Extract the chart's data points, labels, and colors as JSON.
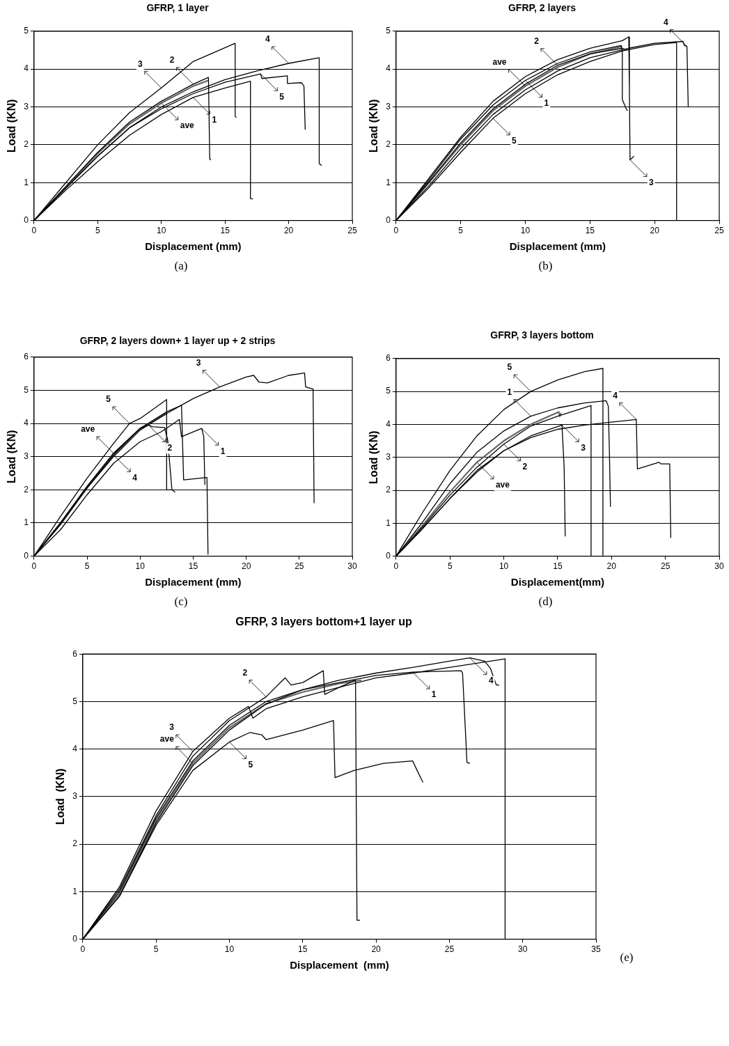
{
  "chart_data": [
    {
      "type": "line",
      "title": "GFRP, 1 layer",
      "xlabel": "Displacement (mm)",
      "ylabel": "Load (KN)",
      "xlim": [
        0,
        25
      ],
      "xticks": [
        0,
        5,
        10,
        15,
        20,
        25
      ],
      "ylim": [
        0,
        5
      ],
      "yticks": [
        0,
        1,
        2,
        3,
        4,
        5
      ],
      "grid": "y",
      "legend": false,
      "series": [
        {
          "color": "#000000",
          "x": [
            0,
            2.5,
            5,
            7.5,
            10,
            12.5,
            15,
            17,
            17,
            17.2
          ],
          "values": [
            0,
            0.8,
            1.55,
            2.25,
            2.8,
            3.25,
            3.5,
            3.68,
            0.58,
            0.57
          ]
        },
        {
          "color": "#000000",
          "x": [
            0,
            2.5,
            5,
            7.5,
            10,
            12.5,
            13.7,
            13.8,
            13.9
          ],
          "values": [
            0,
            0.9,
            1.8,
            2.6,
            3.15,
            3.6,
            3.78,
            1.62,
            1.6
          ]
        },
        {
          "color": "#000000",
          "x": [
            0,
            2.5,
            5,
            7.5,
            10,
            12.5,
            15.8,
            15.8,
            15.9
          ],
          "values": [
            0,
            1.0,
            2.0,
            2.85,
            3.5,
            4.2,
            4.68,
            2.75,
            2.72
          ]
        },
        {
          "color": "#000000",
          "x": [
            0,
            2.5,
            5,
            7.5,
            10,
            12.5,
            15,
            17.5,
            20,
            22.4,
            22.4,
            22.6
          ],
          "values": [
            0,
            0.85,
            1.7,
            2.45,
            3.0,
            3.4,
            3.72,
            3.95,
            4.15,
            4.3,
            1.5,
            1.45
          ]
        },
        {
          "color": "#000000",
          "x": [
            0,
            2.5,
            5,
            7.5,
            10,
            12.5,
            15,
            17.8,
            17.9,
            19.9,
            19.9,
            21,
            21.2,
            21.3
          ],
          "values": [
            0,
            0.85,
            1.7,
            2.45,
            2.95,
            3.35,
            3.65,
            3.87,
            3.75,
            3.82,
            3.62,
            3.64,
            3.55,
            2.4
          ]
        },
        {
          "color": "#666666",
          "x": [
            0,
            2.5,
            5,
            7.5,
            10,
            12.5,
            13.7
          ],
          "values": [
            0,
            0.88,
            1.77,
            2.55,
            3.1,
            3.55,
            3.7
          ]
        }
      ],
      "annotations": [
        {
          "text": "3",
          "x": 10,
          "y": 3.5
        },
        {
          "text": "1",
          "x": 12.5,
          "y": 3.25
        },
        {
          "text": "2",
          "x": 12.5,
          "y": 3.6
        },
        {
          "text": "5",
          "x": 17.8,
          "y": 3.87
        },
        {
          "text": "4",
          "x": 20,
          "y": 4.15
        },
        {
          "text": "ave",
          "x": 10,
          "y": 3.1
        },
        "(a)"
      ]
    },
    {
      "type": "line",
      "title": "GFRP, 2 layers",
      "xlabel": "Displacement (mm)",
      "ylabel": "Load (KN)",
      "xlim": [
        0,
        25
      ],
      "xticks": [
        0,
        5,
        10,
        15,
        20,
        25
      ],
      "ylim": [
        0,
        5
      ],
      "yticks": [
        0,
        1,
        2,
        3,
        4,
        5
      ],
      "grid": "y",
      "legend": false,
      "series": [
        {
          "color": "#000000",
          "x": [
            0,
            2.5,
            5,
            7.5,
            10,
            12.5,
            15,
            17.4,
            17.5,
            17.5,
            17.8,
            17.9
          ],
          "values": [
            0,
            1.05,
            2.15,
            3.05,
            3.7,
            4.15,
            4.45,
            4.62,
            4.45,
            3.2,
            2.95,
            2.9
          ]
        },
        {
          "color": "#000000",
          "x": [
            0,
            2.5,
            5,
            7.5,
            10,
            12.5,
            15,
            17.5,
            17.9
          ],
          "values": [
            0,
            1.0,
            2.05,
            2.95,
            3.6,
            4.1,
            4.4,
            4.55,
            4.5
          ]
        },
        {
          "color": "#000000",
          "x": [
            0,
            2.5,
            5,
            7.5,
            10,
            12.5,
            15,
            17.5,
            18,
            18.05,
            18.1,
            18.4
          ],
          "values": [
            0,
            1.1,
            2.2,
            3.15,
            3.8,
            4.25,
            4.55,
            4.75,
            4.85,
            3.4,
            1.6,
            1.7
          ]
        },
        {
          "color": "#000000",
          "x": [
            0,
            2.5,
            5,
            7.5,
            10,
            12.5,
            15,
            18,
            20,
            22.2,
            22.3,
            22.5,
            22.6
          ],
          "values": [
            0,
            0.9,
            1.9,
            2.8,
            3.45,
            3.95,
            4.3,
            4.55,
            4.68,
            4.73,
            4.62,
            4.6,
            3.0
          ]
        },
        {
          "color": "#000000",
          "x": [
            0,
            2.5,
            5,
            7.5,
            10,
            12.5,
            15,
            17.5,
            20,
            21.7,
            21.7
          ],
          "values": [
            0,
            0.85,
            1.8,
            2.7,
            3.35,
            3.85,
            4.2,
            4.48,
            4.65,
            4.7,
            0
          ]
        },
        {
          "color": "#666666",
          "x": [
            0,
            2.5,
            5,
            7.5,
            10,
            12.5,
            15,
            17.5
          ],
          "values": [
            0,
            0.98,
            2.0,
            2.9,
            3.55,
            4.05,
            4.4,
            4.6
          ]
        }
      ],
      "annotations": [
        {
          "text": "2",
          "x": 12.5,
          "y": 4.1
        },
        {
          "text": "1",
          "x": 10,
          "y": 3.7
        },
        {
          "text": "4",
          "x": 22.5,
          "y": 4.6
        },
        {
          "text": "5",
          "x": 7.5,
          "y": 2.7
        },
        {
          "text": "ave",
          "x": 10,
          "y": 3.55
        },
        {
          "text": "3",
          "x": 18.1,
          "y": 1.6
        },
        "(b)"
      ]
    },
    {
      "type": "line",
      "title": "GFRP, 2 layers down+ 1 layer up + 2 strips",
      "xlabel": "Displacement (mm)",
      "ylabel": "Load (KN)",
      "xlim": [
        0,
        30
      ],
      "xticks": [
        0,
        5,
        10,
        15,
        20,
        25,
        30
      ],
      "ylim": [
        0,
        6
      ],
      "yticks": [
        0,
        1,
        2,
        3,
        4,
        5,
        6
      ],
      "grid": "y",
      "legend": false,
      "series": [
        {
          "color": "#000000",
          "x": [
            0,
            2.5,
            5,
            7.5,
            10,
            12,
            13.7,
            13.9,
            15.8,
            16,
            16.1
          ],
          "values": [
            0,
            0.8,
            1.85,
            2.8,
            3.45,
            3.75,
            4.12,
            3.6,
            3.85,
            3.6,
            2.15
          ]
        },
        {
          "color": "#000000",
          "x": [
            0,
            2.5,
            5,
            7.5,
            10,
            10.8,
            11.2,
            12.3,
            12.6,
            13,
            13.3
          ],
          "values": [
            0,
            1.0,
            2.1,
            3.1,
            3.85,
            3.95,
            3.9,
            3.88,
            3.5,
            2.0,
            1.93
          ]
        },
        {
          "color": "#000000",
          "x": [
            0,
            2.5,
            5,
            7.5,
            10,
            12.5,
            15,
            17.5,
            20,
            20.7,
            21.2,
            22,
            24,
            25.5,
            25.6,
            26.3,
            26.4
          ],
          "values": [
            0,
            1.0,
            2.05,
            3.0,
            3.8,
            4.3,
            4.75,
            5.1,
            5.4,
            5.45,
            5.25,
            5.22,
            5.45,
            5.52,
            5.1,
            5.04,
            1.6
          ]
        },
        {
          "color": "#000000",
          "x": [
            0,
            2.5,
            5,
            7.5,
            10,
            12.5,
            13.9,
            14.1,
            16.3,
            16.4
          ],
          "values": [
            0,
            0.95,
            2.05,
            3.05,
            3.85,
            4.35,
            4.55,
            2.3,
            2.37,
            0.05
          ]
        },
        {
          "color": "#000000",
          "x": [
            0,
            2.5,
            5,
            7.5,
            9,
            10,
            12.5,
            12.5,
            13
          ],
          "values": [
            0,
            1.2,
            2.35,
            3.4,
            4.0,
            4.15,
            4.72,
            2.0,
            2.0
          ]
        },
        {
          "color": "#666666",
          "x": [
            0,
            2.5,
            5,
            7.5,
            10,
            12.5
          ],
          "values": [
            0,
            1.0,
            2.1,
            3.1,
            3.85,
            4.3
          ]
        }
      ],
      "annotations": [
        {
          "text": "3",
          "x": 17.5,
          "y": 5.1
        },
        {
          "text": "4",
          "x": 7.5,
          "y": 3.05
        },
        {
          "text": "5",
          "x": 9,
          "y": 4.0
        },
        {
          "text": "2",
          "x": 10.8,
          "y": 3.95
        },
        {
          "text": "ave",
          "x": 7.5,
          "y": 3.1
        },
        {
          "text": "1",
          "x": 15.8,
          "y": 3.85
        },
        "(c)"
      ]
    },
    {
      "type": "line",
      "title": "GFRP, 3 layers bottom",
      "xlabel": "Displacement(mm)",
      "ylabel": "Load (KN)",
      "xlim": [
        0,
        30
      ],
      "xticks": [
        0,
        5,
        10,
        15,
        20,
        25,
        30
      ],
      "ylim": [
        0,
        6
      ],
      "yticks": [
        0,
        1,
        2,
        3,
        4,
        5,
        6
      ],
      "grid": "y",
      "legend": false,
      "series": [
        {
          "color": "#000000",
          "x": [
            0,
            2.5,
            5,
            7.5,
            10,
            12.5,
            15,
            17.5,
            19.5,
            19.7,
            19.8,
            19.9
          ],
          "values": [
            0,
            1.05,
            2.2,
            3.15,
            3.8,
            4.25,
            4.5,
            4.65,
            4.72,
            4.55,
            3.2,
            1.5
          ]
        },
        {
          "color": "#000000",
          "x": [
            0,
            2.5,
            5,
            7.5,
            10,
            12.5,
            15,
            18.1,
            18.1
          ],
          "values": [
            0,
            0.9,
            1.85,
            2.7,
            3.4,
            3.95,
            4.25,
            4.57,
            0
          ]
        },
        {
          "color": "#000000",
          "x": [
            0,
            2.5,
            5,
            7.5,
            10,
            12.5,
            15.4,
            15.6,
            15.7
          ],
          "values": [
            0,
            0.85,
            1.75,
            2.55,
            3.2,
            3.65,
            3.98,
            2.7,
            0.6
          ]
        },
        {
          "color": "#000000",
          "x": [
            0,
            2.5,
            5,
            7.5,
            10,
            12.5,
            15,
            17.5,
            20,
            22.3,
            22.4,
            24.4,
            24.6,
            25.4,
            25.5
          ],
          "values": [
            0,
            0.85,
            1.75,
            2.6,
            3.2,
            3.6,
            3.85,
            3.98,
            4.07,
            4.15,
            2.65,
            2.85,
            2.8,
            2.8,
            0.55
          ]
        },
        {
          "color": "#000000",
          "x": [
            0,
            2.5,
            5,
            7.5,
            10,
            12.5,
            15,
            17.5,
            19.2,
            19.2
          ],
          "values": [
            0,
            1.35,
            2.6,
            3.65,
            4.45,
            5.0,
            5.35,
            5.6,
            5.7,
            0
          ]
        },
        {
          "color": "#666666",
          "x": [
            0,
            2.5,
            5,
            7.5,
            10,
            12.5,
            15.1,
            15.2,
            15.3
          ],
          "values": [
            0,
            0.95,
            1.95,
            2.85,
            3.5,
            4.0,
            4.38,
            4.25,
            4.35
          ]
        }
      ],
      "annotations": [
        {
          "text": "5",
          "x": 12.5,
          "y": 5.0
        },
        {
          "text": "3",
          "x": 15.4,
          "y": 3.98
        },
        {
          "text": "1",
          "x": 12.5,
          "y": 4.25
        },
        {
          "text": "2",
          "x": 10,
          "y": 3.4
        },
        {
          "text": "4",
          "x": 22.3,
          "y": 4.15
        },
        {
          "text": "ave",
          "x": 7.5,
          "y": 2.85
        },
        "(d)"
      ]
    },
    {
      "type": "line",
      "title": "GFRP, 3 layers bottom+1 layer up",
      "xlabel": "Displacement  (mm)",
      "ylabel": "Load  (KN)",
      "xlim": [
        0,
        35
      ],
      "xticks": [
        0,
        5,
        10,
        15,
        20,
        25,
        30,
        35
      ],
      "ylim": [
        0,
        6
      ],
      "yticks": [
        0,
        1,
        2,
        3,
        4,
        5,
        6
      ],
      "grid": "y",
      "legend": false,
      "series": [
        {
          "color": "#000000",
          "x": [
            0,
            2.5,
            5,
            7.5,
            10,
            12.5,
            15,
            17.5,
            20,
            22.5,
            25.8,
            25.9,
            26.2,
            26.4
          ],
          "values": [
            0,
            1.0,
            2.55,
            3.75,
            4.5,
            5.0,
            5.25,
            5.4,
            5.55,
            5.62,
            5.65,
            5.6,
            3.72,
            3.7
          ]
        },
        {
          "color": "#000000",
          "x": [
            0,
            2.5,
            5,
            7.5,
            10,
            12.5,
            13.8,
            14.2,
            15,
            16.4,
            16.5,
            17.5,
            18.6,
            18.7,
            18.9
          ],
          "values": [
            0,
            1.05,
            2.6,
            3.85,
            4.6,
            5.1,
            5.5,
            5.35,
            5.4,
            5.65,
            5.15,
            5.3,
            5.45,
            0.4,
            0.4
          ]
        },
        {
          "color": "#000000",
          "x": [
            0,
            2.5,
            5,
            7.5,
            10,
            11.3,
            11.6,
            12.5,
            15,
            17.5,
            20,
            22.5,
            25,
            28.8,
            28.8
          ],
          "values": [
            0,
            1.1,
            2.7,
            3.95,
            4.65,
            4.9,
            4.65,
            4.85,
            5.1,
            5.3,
            5.5,
            5.6,
            5.72,
            5.9,
            0
          ]
        },
        {
          "color": "#000000",
          "x": [
            0,
            2.5,
            5,
            7.5,
            10,
            12.5,
            15,
            17.5,
            20,
            22.5,
            25,
            26.4,
            27.4,
            27.8,
            28.2,
            28.4
          ],
          "values": [
            0,
            0.9,
            2.45,
            3.65,
            4.4,
            4.95,
            5.25,
            5.45,
            5.6,
            5.72,
            5.85,
            5.92,
            5.85,
            5.7,
            5.35,
            5.35
          ]
        },
        {
          "color": "#000000",
          "x": [
            0,
            2.5,
            5,
            7.5,
            10,
            11.4,
            12.2,
            12.5,
            15,
            17.1,
            17.2,
            18.5,
            20.5,
            22.5,
            22.8,
            23.2
          ],
          "values": [
            0,
            0.9,
            2.4,
            3.55,
            4.15,
            4.35,
            4.3,
            4.2,
            4.4,
            4.6,
            3.4,
            3.55,
            3.7,
            3.75,
            3.55,
            3.3
          ]
        },
        {
          "color": "#666666",
          "x": [
            0,
            2.5,
            5,
            7.5,
            10,
            12.5,
            15,
            17.5,
            19
          ],
          "values": [
            0,
            0.95,
            2.5,
            3.7,
            4.45,
            4.95,
            5.2,
            5.38,
            5.45
          ]
        }
      ],
      "annotations": [
        {
          "text": "2",
          "x": 12.5,
          "y": 5.1
        },
        {
          "text": "5",
          "x": 10,
          "y": 4.15
        },
        {
          "text": "3",
          "x": 7.5,
          "y": 3.95
        },
        {
          "text": "1",
          "x": 22.5,
          "y": 5.62
        },
        {
          "text": "ave",
          "x": 7.5,
          "y": 3.7
        },
        {
          "text": "4",
          "x": 26.4,
          "y": 5.92
        },
        "(e)"
      ]
    }
  ]
}
